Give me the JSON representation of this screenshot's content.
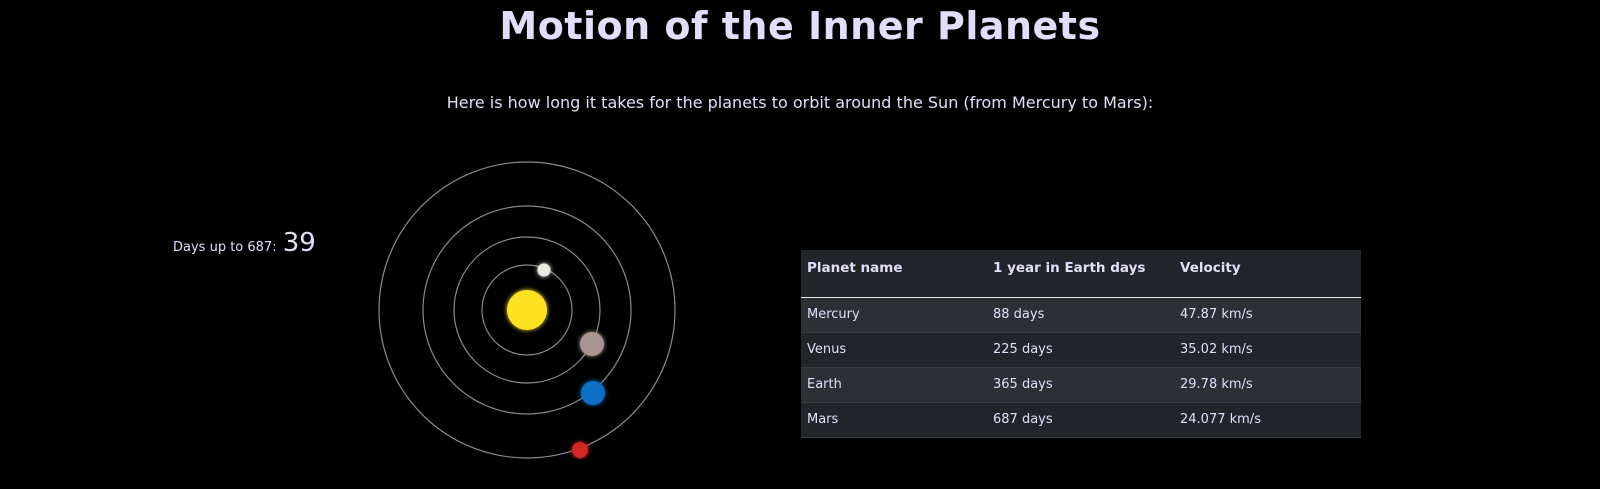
{
  "page": {
    "title": "Motion of the Inner Planets",
    "subtitle": "Here is how long it takes for the planets to orbit around the Sun (from Mercury to Mars):"
  },
  "counter": {
    "label": "Days up to 687:",
    "value": "39"
  },
  "colors": {
    "background": "#000000",
    "sun": "#ffe224",
    "mercury": "#ece8e4",
    "venus": "#a89590",
    "earth": "#0b6fc4",
    "mars": "#d42820",
    "orbit": "#8a8a8a"
  },
  "table": {
    "headers": [
      "Planet name",
      "1 year in Earth days",
      "Velocity"
    ],
    "rows": [
      {
        "name": "Mercury",
        "days": "88 days",
        "velocity": "47.87 km/s"
      },
      {
        "name": "Venus",
        "days": "225 days",
        "velocity": "35.02 km/s"
      },
      {
        "name": "Earth",
        "days": "365 days",
        "velocity": "29.78 km/s"
      },
      {
        "name": "Mars",
        "days": "687 days",
        "velocity": "24.077 km/s"
      }
    ]
  }
}
